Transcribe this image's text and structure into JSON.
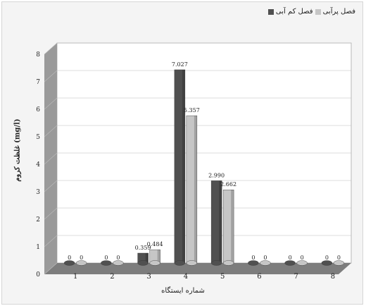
{
  "legend": {
    "series_b_label": "فصل پرآبی",
    "series_a_label": "فصل کم آبی"
  },
  "colors": {
    "series_a": "#505050",
    "series_b": "#c6c6c6",
    "panel": "#ffffff",
    "wall": "#9a9a9a",
    "floor": "#7d7d7d",
    "grid": "#bdbdbd"
  },
  "chart_data": {
    "type": "bar",
    "categories": [
      "1",
      "2",
      "3",
      "4",
      "5",
      "6",
      "7",
      "8"
    ],
    "series": [
      {
        "name": "فصل کم آبی",
        "values": [
          0,
          0,
          0.359,
          7.027,
          2.99,
          0,
          0,
          0
        ],
        "labels": [
          "0",
          "0",
          "0.359",
          "7.027",
          "2.990",
          "0",
          "0",
          "0"
        ]
      },
      {
        "name": "فصل پرآبی",
        "values": [
          0,
          0,
          0.484,
          5.357,
          2.662,
          0,
          0,
          0
        ],
        "labels": [
          "0",
          "0",
          "0.484",
          "5.357",
          "2.662",
          "0",
          "0",
          "0"
        ]
      }
    ],
    "ylim": [
      0,
      8
    ],
    "yticks": [
      "0",
      "1",
      "2",
      "3",
      "4",
      "5",
      "6",
      "7",
      "8"
    ],
    "xlabel": "شماره ایستگاه",
    "ylabel": "غلظت کروم (mg/l)",
    "grid": true,
    "legend_position": "top-right"
  }
}
